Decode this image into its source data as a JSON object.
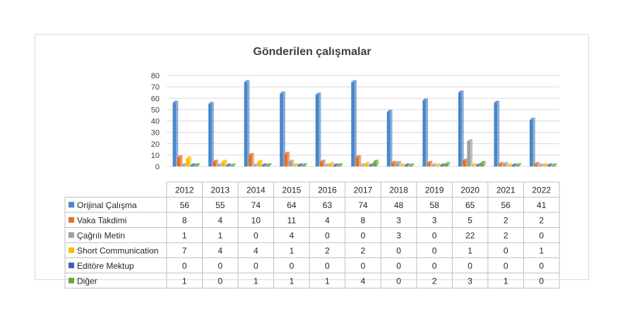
{
  "chart_data": {
    "type": "bar",
    "title": "Gönderilen çalışmalar",
    "categories": [
      "2012",
      "2013",
      "2014",
      "2015",
      "2016",
      "2017",
      "2018",
      "2019",
      "2020",
      "2021",
      "2022"
    ],
    "ylim": [
      0,
      80
    ],
    "yticks": [
      0,
      10,
      20,
      30,
      40,
      50,
      60,
      70,
      80
    ],
    "grid": true,
    "legend": "data-table",
    "series": [
      {
        "name": "Orijinal Çalışma",
        "color": "#4a86c8",
        "values": [
          56,
          55,
          74,
          64,
          63,
          74,
          48,
          58,
          65,
          56,
          41
        ]
      },
      {
        "name": "Vaka Takdimi",
        "color": "#e2702b",
        "values": [
          8,
          4,
          10,
          11,
          4,
          8,
          3,
          3,
          5,
          2,
          2
        ]
      },
      {
        "name": "Çağrılı Metin",
        "color": "#a0a0a0",
        "values": [
          1,
          1,
          0,
          4,
          0,
          0,
          3,
          0,
          22,
          2,
          0
        ]
      },
      {
        "name": "Short Communication",
        "color": "#f5bd00",
        "values": [
          7,
          4,
          4,
          1,
          2,
          2,
          0,
          0,
          1,
          0,
          1
        ]
      },
      {
        "name": "Editöre Mektup",
        "color": "#3a64b6",
        "values": [
          0,
          0,
          0,
          0,
          0,
          0,
          0,
          0,
          0,
          0,
          0
        ]
      },
      {
        "name": "Diğer",
        "color": "#6aa544",
        "values": [
          1,
          0,
          1,
          1,
          1,
          4,
          0,
          2,
          3,
          1,
          0
        ]
      }
    ]
  }
}
